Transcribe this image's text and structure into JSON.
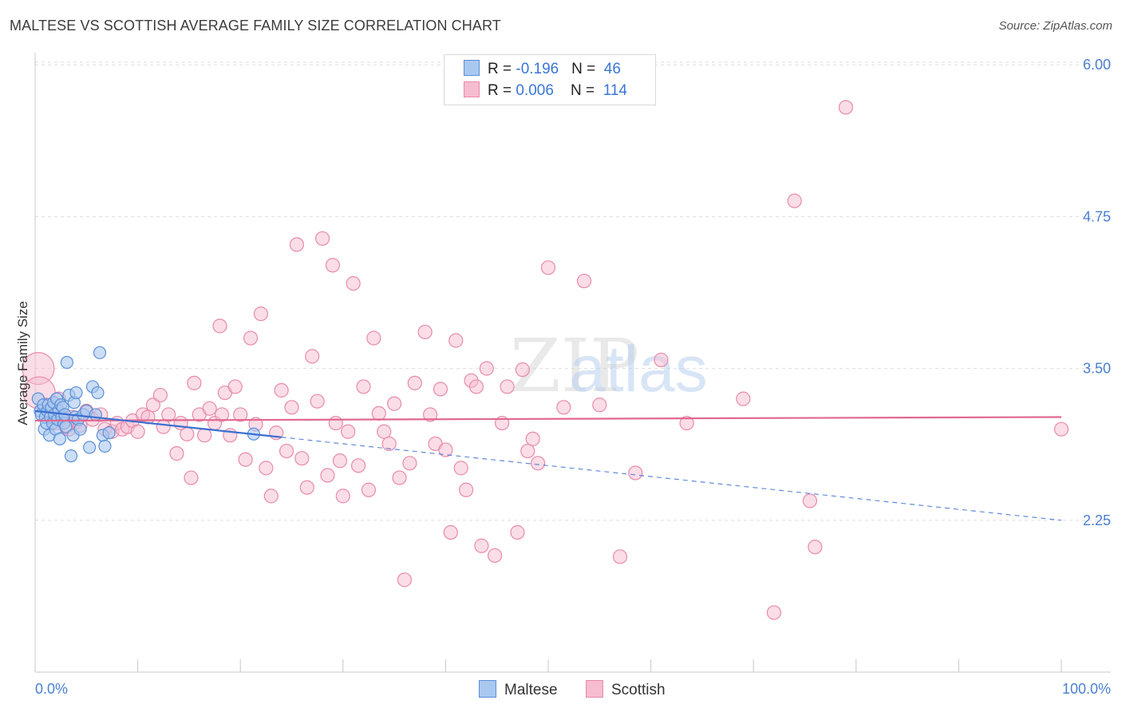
{
  "title": "MALTESE VS SCOTTISH AVERAGE FAMILY SIZE CORRELATION CHART",
  "source": "Source: ZipAtlas.com",
  "watermark": "ZIPatlas",
  "legend": {
    "rows": [
      {
        "r_label": "R = ",
        "r_value": "-0.196",
        "n_label": "N = ",
        "n_value": "46"
      },
      {
        "r_label": "R = ",
        "r_value": "0.006",
        "n_label": "N = ",
        "n_value": "114"
      }
    ]
  },
  "bottom_legend": [
    "Maltese",
    "Scottish"
  ],
  "colors": {
    "maltese_fill": "#a9c8f0",
    "maltese_stroke": "#5b8fd8",
    "maltese_line": "#3b6fd0",
    "scottish_fill": "#f6bcd0",
    "scottish_stroke": "#e88aab",
    "scottish_line": "#e0688f",
    "tick_text": "#4a7fd1",
    "grid": "#dddddd"
  },
  "chart_data": {
    "type": "scatter",
    "xlabel": "",
    "ylabel": "Average Family Size",
    "xlim": [
      0,
      100
    ],
    "ylim": [
      1.0,
      6.1
    ],
    "x_tick_labels": [
      "0.0%",
      "100.0%"
    ],
    "y_ticks": [
      6.0,
      4.75,
      3.5,
      2.25
    ],
    "y_tick_labels": [
      "6.00",
      "4.75",
      "3.50",
      "2.25"
    ],
    "grid": "horizontal dashed",
    "series": [
      {
        "name": "Maltese",
        "points": [
          [
            0.3,
            3.25
          ],
          [
            0.5,
            3.15
          ],
          [
            0.6,
            3.12
          ],
          [
            0.8,
            3.2
          ],
          [
            0.9,
            3.0
          ],
          [
            1.0,
            3.1
          ],
          [
            1.1,
            3.05
          ],
          [
            1.2,
            3.15
          ],
          [
            1.3,
            3.2
          ],
          [
            1.4,
            2.95
          ],
          [
            1.5,
            3.1
          ],
          [
            1.6,
            3.18
          ],
          [
            1.7,
            3.05
          ],
          [
            1.8,
            3.22
          ],
          [
            1.9,
            3.12
          ],
          [
            2.0,
            3.0
          ],
          [
            2.1,
            3.25
          ],
          [
            2.2,
            3.08
          ],
          [
            2.3,
            3.15
          ],
          [
            2.4,
            2.92
          ],
          [
            2.5,
            3.2
          ],
          [
            2.6,
            3.1
          ],
          [
            2.7,
            3.18
          ],
          [
            2.8,
            3.05
          ],
          [
            2.9,
            3.12
          ],
          [
            3.0,
            3.02
          ],
          [
            3.1,
            3.55
          ],
          [
            3.3,
            3.28
          ],
          [
            3.5,
            2.78
          ],
          [
            3.7,
            2.95
          ],
          [
            3.8,
            3.22
          ],
          [
            3.9,
            3.1
          ],
          [
            4.0,
            3.3
          ],
          [
            4.2,
            3.08
          ],
          [
            4.4,
            3.0
          ],
          [
            4.7,
            3.12
          ],
          [
            5.0,
            3.15
          ],
          [
            5.3,
            2.85
          ],
          [
            5.6,
            3.35
          ],
          [
            5.9,
            3.12
          ],
          [
            6.1,
            3.3
          ],
          [
            6.3,
            3.63
          ],
          [
            6.6,
            2.95
          ],
          [
            6.8,
            2.86
          ],
          [
            7.2,
            2.97
          ],
          [
            21.3,
            2.96
          ]
        ],
        "trend": {
          "x0": 0,
          "y0": 3.15,
          "x1": 100,
          "y1": 2.25,
          "solid_until_x": 24
        }
      },
      {
        "name": "Scottish",
        "points": [
          [
            0.3,
            3.5
          ],
          [
            0.4,
            3.3
          ],
          [
            1.0,
            3.2
          ],
          [
            1.5,
            3.1
          ],
          [
            2.0,
            3.05
          ],
          [
            2.3,
            3.25
          ],
          [
            2.6,
            3.12
          ],
          [
            3.0,
            3.02
          ],
          [
            3.3,
            3.0
          ],
          [
            3.6,
            3.1
          ],
          [
            4.0,
            3.06
          ],
          [
            4.4,
            3.03
          ],
          [
            5.0,
            3.15
          ],
          [
            5.6,
            3.08
          ],
          [
            6.4,
            3.12
          ],
          [
            6.8,
            3.0
          ],
          [
            7.5,
            2.98
          ],
          [
            8.0,
            3.05
          ],
          [
            8.5,
            3.0
          ],
          [
            9.0,
            3.02
          ],
          [
            9.5,
            3.07
          ],
          [
            10.0,
            2.98
          ],
          [
            10.5,
            3.12
          ],
          [
            11.0,
            3.1
          ],
          [
            11.5,
            3.2
          ],
          [
            12.2,
            3.28
          ],
          [
            12.5,
            3.02
          ],
          [
            13.0,
            3.12
          ],
          [
            13.8,
            2.8
          ],
          [
            14.2,
            3.05
          ],
          [
            14.8,
            2.96
          ],
          [
            15.2,
            2.6
          ],
          [
            15.5,
            3.38
          ],
          [
            16.0,
            3.12
          ],
          [
            16.5,
            2.95
          ],
          [
            17.0,
            3.17
          ],
          [
            17.5,
            3.05
          ],
          [
            18.0,
            3.85
          ],
          [
            18.2,
            3.12
          ],
          [
            18.5,
            3.3
          ],
          [
            19.0,
            2.95
          ],
          [
            19.5,
            3.35
          ],
          [
            20.0,
            3.12
          ],
          [
            20.5,
            2.75
          ],
          [
            21.0,
            3.75
          ],
          [
            21.5,
            3.04
          ],
          [
            22.0,
            3.95
          ],
          [
            22.5,
            2.68
          ],
          [
            23.0,
            2.45
          ],
          [
            23.5,
            2.97
          ],
          [
            24.0,
            3.32
          ],
          [
            24.5,
            2.82
          ],
          [
            25.0,
            3.18
          ],
          [
            25.5,
            4.52
          ],
          [
            26.0,
            2.76
          ],
          [
            26.5,
            2.52
          ],
          [
            27.0,
            3.6
          ],
          [
            27.5,
            3.23
          ],
          [
            28.0,
            4.57
          ],
          [
            28.5,
            2.62
          ],
          [
            29.0,
            4.35
          ],
          [
            29.3,
            3.05
          ],
          [
            29.7,
            2.74
          ],
          [
            30.0,
            2.45
          ],
          [
            30.5,
            2.98
          ],
          [
            31.0,
            4.2
          ],
          [
            31.5,
            2.7
          ],
          [
            32.0,
            3.35
          ],
          [
            32.5,
            2.5
          ],
          [
            33.0,
            3.75
          ],
          [
            33.5,
            3.13
          ],
          [
            34.0,
            2.98
          ],
          [
            34.5,
            2.88
          ],
          [
            35.0,
            3.21
          ],
          [
            35.5,
            2.6
          ],
          [
            36.0,
            1.76
          ],
          [
            36.5,
            2.72
          ],
          [
            37.0,
            3.38
          ],
          [
            38.0,
            3.8
          ],
          [
            38.5,
            3.12
          ],
          [
            39.0,
            2.88
          ],
          [
            39.5,
            3.33
          ],
          [
            40.0,
            2.83
          ],
          [
            40.5,
            2.15
          ],
          [
            41.0,
            3.73
          ],
          [
            41.5,
            2.68
          ],
          [
            42.0,
            2.5
          ],
          [
            42.5,
            3.4
          ],
          [
            43.0,
            3.35
          ],
          [
            43.5,
            2.04
          ],
          [
            44.0,
            3.5
          ],
          [
            44.8,
            1.96
          ],
          [
            45.5,
            3.05
          ],
          [
            46.0,
            3.35
          ],
          [
            47.0,
            2.15
          ],
          [
            47.5,
            3.49
          ],
          [
            48.0,
            2.82
          ],
          [
            48.5,
            2.92
          ],
          [
            49.0,
            2.72
          ],
          [
            50.0,
            4.33
          ],
          [
            51.5,
            3.18
          ],
          [
            53.5,
            4.22
          ],
          [
            55.0,
            3.2
          ],
          [
            57.0,
            1.95
          ],
          [
            58.5,
            2.64
          ],
          [
            61.0,
            3.57
          ],
          [
            63.5,
            3.05
          ],
          [
            69.0,
            3.25
          ],
          [
            72.0,
            1.49
          ],
          [
            74.0,
            4.88
          ],
          [
            75.5,
            2.41
          ],
          [
            76.0,
            2.03
          ],
          [
            79.0,
            5.65
          ],
          [
            100.0,
            3.0
          ]
        ],
        "trend": {
          "x0": 0,
          "y0": 3.07,
          "x1": 100,
          "y1": 3.1
        }
      }
    ]
  }
}
